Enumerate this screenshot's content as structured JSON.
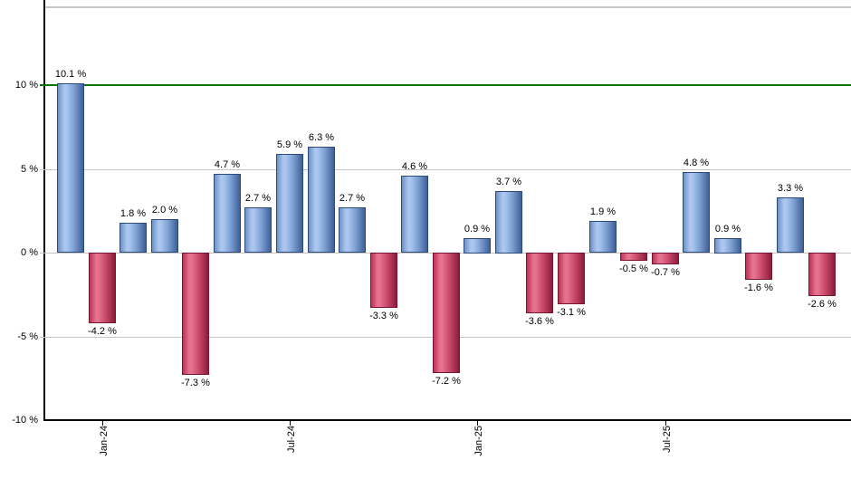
{
  "background_color": "#ffffff",
  "chart_data": {
    "type": "bar",
    "title": "",
    "xlabel": "",
    "ylabel": "",
    "unit": "%",
    "grid": true,
    "legend": false,
    "ylim": [
      -10,
      14.6
    ],
    "values": [
      10.1,
      -4.2,
      1.8,
      2.0,
      -7.3,
      4.7,
      2.7,
      5.9,
      6.3,
      2.7,
      -3.3,
      4.6,
      -7.2,
      0.9,
      3.7,
      -3.6,
      -3.1,
      1.9,
      -0.5,
      -0.7,
      4.8,
      0.9,
      -1.6,
      3.3,
      -2.6
    ],
    "bar_labels": [
      "10.1 %",
      "-4.2 %",
      "1.8 %",
      "2.0 %",
      "-7.3 %",
      "4.7 %",
      "2.7 %",
      "5.9 %",
      "6.3 %",
      "2.7 %",
      "-3.3 %",
      "4.6 %",
      "-7.2 %",
      "0.9 %",
      "3.7 %",
      "-3.6 %",
      "-3.1 %",
      "1.9 %",
      "-0.5 %",
      "-0.7 %",
      "4.8 %",
      "0.9 %",
      "-1.6 %",
      "3.3 %",
      "-2.6 %"
    ],
    "y_ticks": [
      {
        "value": 10,
        "label": "10 %"
      },
      {
        "value": 5,
        "label": "5 %"
      },
      {
        "value": 0,
        "label": "0 %"
      },
      {
        "value": -5,
        "label": "-5 %"
      },
      {
        "value": -10,
        "label": "-10 %"
      }
    ],
    "x_ticks": [
      {
        "bar_index": 1,
        "label": "Jan-24"
      },
      {
        "bar_index": 7,
        "label": "Jul-24"
      },
      {
        "bar_index": 13,
        "label": "Jan-25"
      },
      {
        "bar_index": 19,
        "label": "Jul-25"
      }
    ],
    "reference_line": {
      "value": 10,
      "color": "#077507"
    },
    "colors": {
      "positive_edge": "#6e90c4",
      "positive_light": "#abc7ef",
      "positive_mid": "#7fa2d4",
      "positive_dark": "#3f5f97",
      "positive_border": "#2c4a7c",
      "negative_edge": "#bb3156",
      "negative_light": "#e5728f",
      "negative_mid": "#c94a6b",
      "negative_dark": "#8c1c3c",
      "negative_border": "#78152f",
      "grid": "#c4c4c4",
      "top_border": "#c8c8c8",
      "axis": "#000000",
      "label_text": "#000000"
    }
  }
}
